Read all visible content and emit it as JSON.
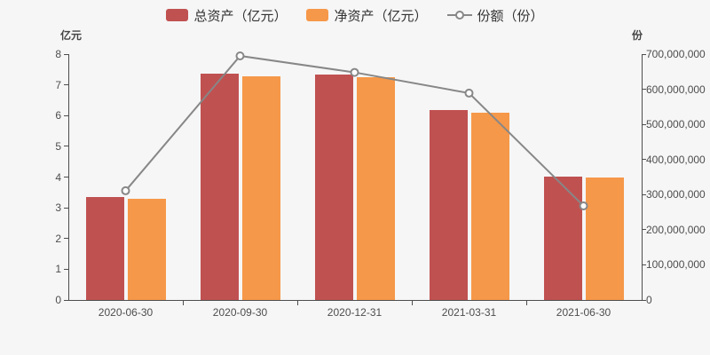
{
  "chart_data": {
    "type": "bar+line",
    "title": "",
    "categories": [
      "2020-06-30",
      "2020-09-30",
      "2020-12-31",
      "2021-03-31",
      "2021-06-30"
    ],
    "series": [
      {
        "name": "总资产（亿元）",
        "type": "bar",
        "axis": "left",
        "color": "#c05151",
        "values": [
          3.35,
          7.36,
          7.33,
          6.19,
          4.01
        ]
      },
      {
        "name": "净资产（亿元）",
        "type": "bar",
        "axis": "left",
        "color": "#f69849",
        "values": [
          3.3,
          7.28,
          7.24,
          6.08,
          3.99
        ]
      },
      {
        "name": "份额（份）",
        "type": "line",
        "axis": "right",
        "color": "#878787",
        "values": [
          311000000,
          695000000,
          648000000,
          589000000,
          268000000
        ]
      }
    ],
    "y_axis_left": {
      "name": "亿元",
      "min": 0,
      "max": 8,
      "ticks": [
        "0",
        "1",
        "2",
        "3",
        "4",
        "5",
        "6",
        "7",
        "8"
      ]
    },
    "y_axis_right": {
      "name": "份",
      "min": 0,
      "max": 700000000,
      "ticks": [
        "0",
        "100,000,000",
        "200,000,000",
        "300,000,000",
        "400,000,000",
        "500,000,000",
        "600,000,000",
        "700,000,000"
      ]
    },
    "grid": false,
    "legend_position": "top",
    "background": "#f6f6f6"
  }
}
